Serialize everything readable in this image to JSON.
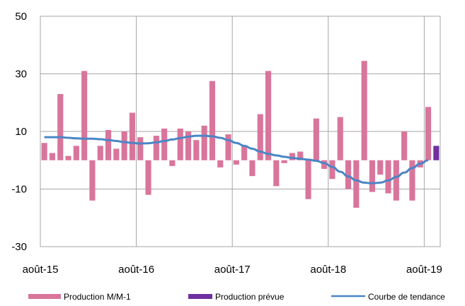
{
  "chart_data": {
    "type": "bar",
    "title": "",
    "xlabel": "",
    "ylabel": "",
    "ylim": [
      -30,
      50
    ],
    "yticks": [
      50,
      30,
      10,
      -10,
      -30
    ],
    "x_tick_labels": [
      "août-15",
      "août-16",
      "août-17",
      "août-18",
      "août-19"
    ],
    "x_tick_positions": [
      0,
      12,
      24,
      36,
      48
    ],
    "grid": true,
    "legend_position": "bottom",
    "series": [
      {
        "name": "Production M/M-1",
        "kind": "bar",
        "color": "#d9759b",
        "x": [
          0,
          1,
          2,
          3,
          4,
          5,
          6,
          7,
          8,
          9,
          10,
          11,
          12,
          13,
          14,
          15,
          16,
          17,
          18,
          19,
          20,
          21,
          22,
          23,
          24,
          25,
          26,
          27,
          28,
          29,
          30,
          31,
          32,
          33,
          34,
          35,
          36,
          37,
          38,
          39,
          40,
          41,
          42,
          43,
          44,
          45,
          46,
          47,
          48
        ],
        "values": [
          6,
          2.5,
          23,
          1.5,
          5,
          31,
          -14,
          5,
          10.5,
          4,
          10,
          16.5,
          8,
          -12,
          8.5,
          11,
          -2,
          11,
          10,
          7,
          12,
          27.5,
          -2.5,
          9,
          -1.5,
          5,
          -5.5,
          16,
          31,
          -9,
          -1,
          2.5,
          3,
          -13.5,
          14.5,
          -3,
          -6.5,
          15,
          -10,
          -16.5,
          34.5,
          -11,
          -5,
          -11.5,
          -14,
          10,
          -14,
          -2.5,
          18.5
        ]
      },
      {
        "name": "Production prévue",
        "kind": "bar",
        "color": "#7030a0",
        "x": [
          49
        ],
        "values": [
          5
        ]
      },
      {
        "name": "Courbe de tendance",
        "kind": "line",
        "color": "#4a86c5",
        "x": [
          0,
          1,
          2,
          3,
          4,
          5,
          6,
          7,
          8,
          9,
          10,
          11,
          12,
          13,
          14,
          15,
          16,
          17,
          18,
          19,
          20,
          21,
          22,
          23,
          24,
          25,
          26,
          27,
          28,
          29,
          30,
          31,
          32,
          33,
          34,
          35,
          36,
          37,
          38,
          39,
          40,
          41,
          42,
          43,
          44,
          45,
          46,
          47,
          48
        ],
        "values": [
          8,
          8,
          8,
          7.8,
          7.6,
          7.5,
          7.5,
          7.3,
          7,
          6.7,
          6.3,
          6,
          5.8,
          5.9,
          6.2,
          6.7,
          7.2,
          7.7,
          8.2,
          8.5,
          8.5,
          8.3,
          7.8,
          7,
          6,
          5,
          4,
          3,
          2.2,
          1.7,
          1.2,
          0.8,
          0.5,
          0.2,
          -0.2,
          -1,
          -2.3,
          -4,
          -5.6,
          -7,
          -7.8,
          -8,
          -7.8,
          -7,
          -5.8,
          -4.3,
          -2.7,
          -1.2,
          0
        ]
      }
    ]
  }
}
